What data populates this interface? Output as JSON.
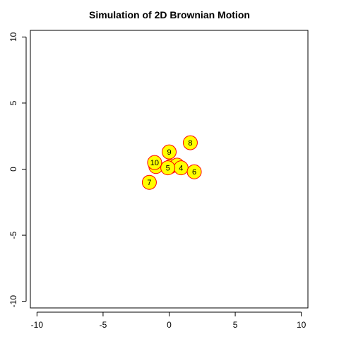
{
  "chart_data": {
    "type": "scatter",
    "title": "Simulation of 2D Brownian Motion",
    "xlabel": "",
    "ylabel": "",
    "xlim": [
      -10.5,
      10.5
    ],
    "ylim": [
      -10.5,
      10.5
    ],
    "x_ticks": [
      -10,
      -5,
      0,
      5,
      10
    ],
    "y_ticks": [
      -10,
      -5,
      0,
      5,
      10
    ],
    "x_tick_labels": [
      "-10",
      "-5",
      "0",
      "5",
      "10"
    ],
    "y_tick_labels": [
      "-10",
      "-5",
      "0",
      "5",
      "10"
    ],
    "grid": false,
    "legend": false,
    "marker_fill": "#ffff00",
    "marker_edge": "#ff0000",
    "points": [
      {
        "label": "1",
        "x": -1.0,
        "y": 0.2
      },
      {
        "label": "2",
        "x": 0.1,
        "y": 0.2
      },
      {
        "label": "3",
        "x": 0.6,
        "y": 0.3
      },
      {
        "label": "4",
        "x": 0.9,
        "y": 0.1
      },
      {
        "label": "5",
        "x": -0.1,
        "y": 0.1
      },
      {
        "label": "6",
        "x": 1.9,
        "y": -0.2
      },
      {
        "label": "7",
        "x": -1.5,
        "y": -1.0
      },
      {
        "label": "8",
        "x": 1.6,
        "y": 2.0
      },
      {
        "label": "9",
        "x": 0.0,
        "y": 1.3
      },
      {
        "label": "10",
        "x": -1.1,
        "y": 0.5
      }
    ]
  }
}
